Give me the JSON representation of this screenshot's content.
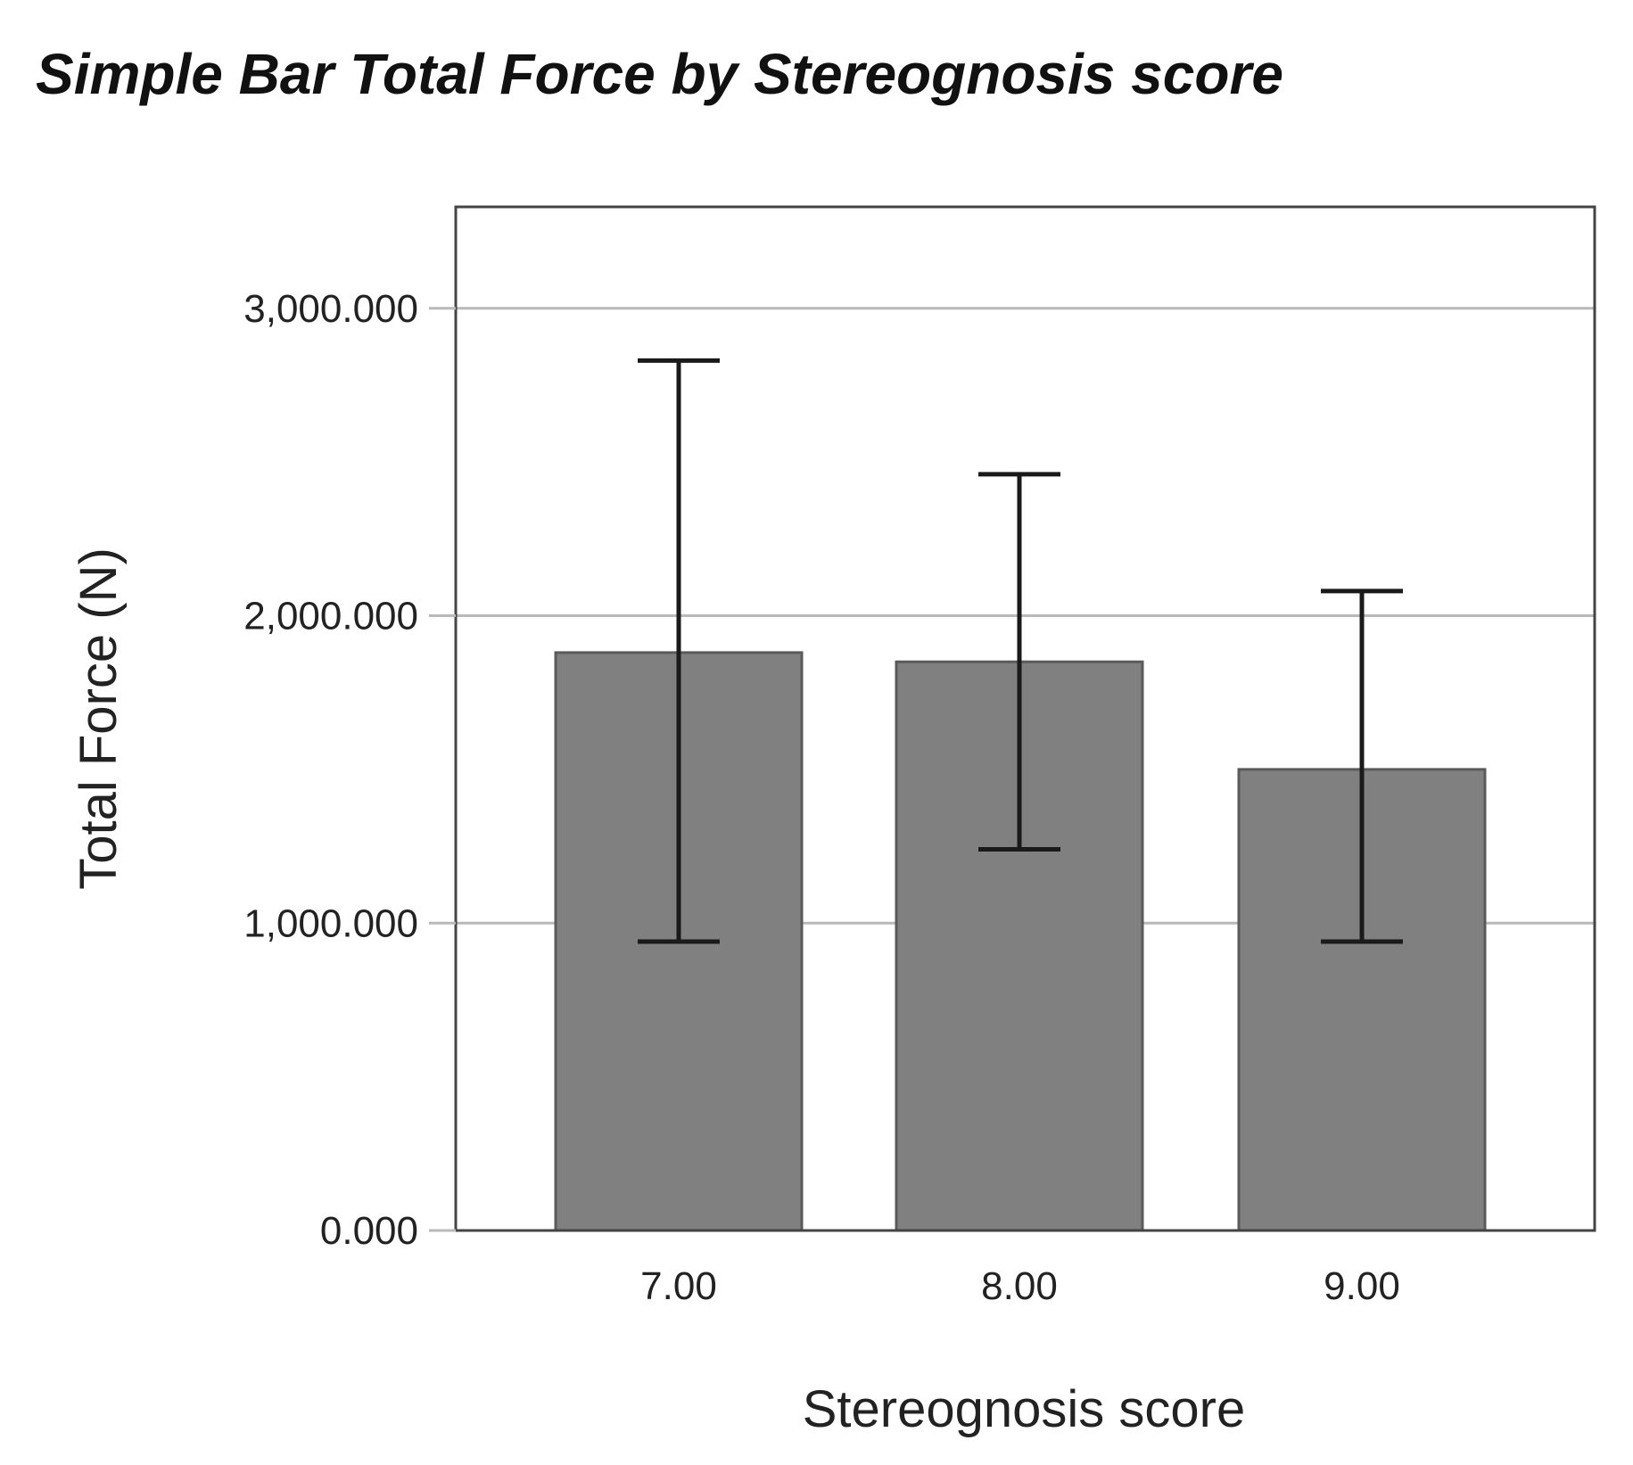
{
  "chart_data": {
    "type": "bar",
    "title": "Simple Bar Total Force by Stereognosis score",
    "xlabel": "Stereognosis score",
    "ylabel": "Total Force (N)",
    "categories": [
      "7.00",
      "8.00",
      "9.00"
    ],
    "values": [
      1880000,
      1850000,
      1500000
    ],
    "error_bars": [
      {
        "low": 940000,
        "high": 2830000
      },
      {
        "low": 1240000,
        "high": 2460000
      },
      {
        "low": 940000,
        "high": 2080000
      }
    ],
    "ylim": [
      0,
      3330000
    ],
    "yticks": [
      0,
      1000000,
      2000000,
      3000000
    ],
    "ytick_labels": [
      "0.000",
      "1,000.000",
      "2,000.000",
      "3,000.000"
    ],
    "grid": true,
    "colors": {
      "bar": "#808080",
      "bar_edge": "#5a5a5a",
      "error_bar": "#1a1a1a",
      "grid": "#b9b9b9",
      "frame": "#444444"
    }
  }
}
